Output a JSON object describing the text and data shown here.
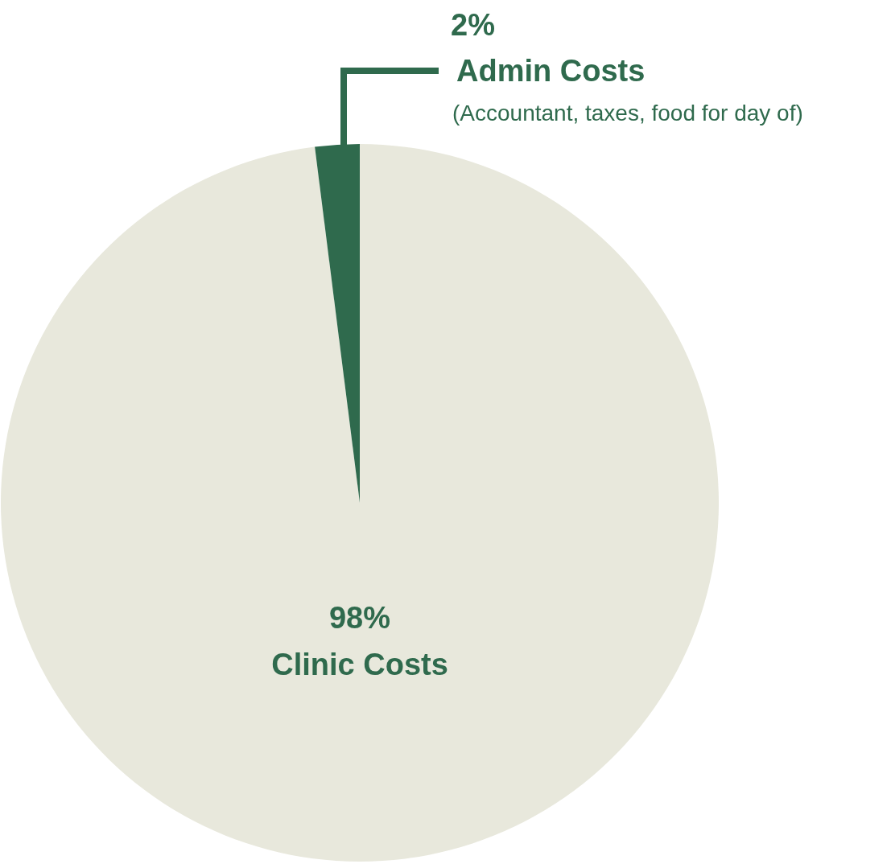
{
  "chart_data": {
    "type": "pie",
    "categories": [
      "Clinic Costs",
      "Admin Costs"
    ],
    "values": [
      98,
      2
    ],
    "colors": [
      "#e8e8dc",
      "#2f6a4d"
    ],
    "value_labels": [
      "98%",
      "2%"
    ],
    "annotations": [
      "(Accountant, taxes, food for day of)"
    ]
  }
}
